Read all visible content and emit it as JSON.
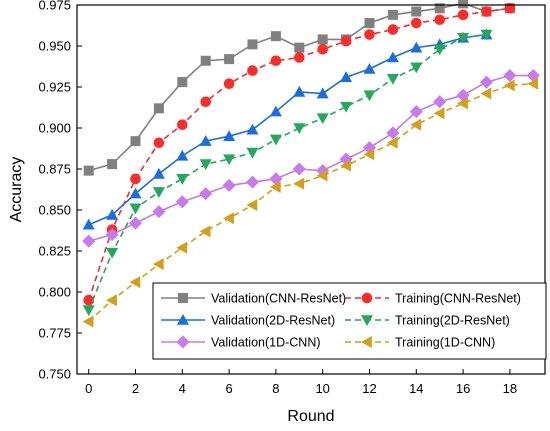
{
  "chart_data": {
    "type": "line",
    "title": "",
    "xlabel": "Round",
    "ylabel": "Accuracy",
    "xlim": [
      -0.5,
      19.5
    ],
    "ylim": [
      0.75,
      0.975
    ],
    "x_ticks": [
      0,
      2,
      4,
      6,
      8,
      10,
      12,
      14,
      16,
      18
    ],
    "y_ticks": [
      0.75,
      0.775,
      0.8,
      0.825,
      0.85,
      0.875,
      0.9,
      0.925,
      0.95,
      0.975
    ],
    "x_tick_labels": [
      "0",
      "2",
      "4",
      "6",
      "8",
      "10",
      "12",
      "14",
      "16",
      "18"
    ],
    "y_tick_labels": [
      "0.750",
      "0.775",
      "0.800",
      "0.825",
      "0.850",
      "0.875",
      "0.900",
      "0.925",
      "0.950",
      "0.975"
    ],
    "grid": false,
    "legend_position": "bottom-right",
    "series": [
      {
        "name": "Validation(CNN-ResNet)",
        "color": "#808080",
        "marker": "square",
        "dash": "solid",
        "x": [
          0,
          1,
          2,
          3,
          4,
          5,
          6,
          7,
          8,
          9,
          10,
          11,
          12,
          13,
          14,
          15,
          16,
          17,
          18
        ],
        "values": [
          0.874,
          0.878,
          0.892,
          0.912,
          0.928,
          0.941,
          0.942,
          0.951,
          0.956,
          0.949,
          0.954,
          0.954,
          0.964,
          0.969,
          0.971,
          0.973,
          0.976,
          0.971,
          0.973
        ]
      },
      {
        "name": "Training(CNN-ResNet)",
        "color": "#ff2a2a",
        "marker": "circle",
        "dash": "dash",
        "x": [
          0,
          1,
          2,
          3,
          4,
          5,
          6,
          7,
          8,
          9,
          10,
          11,
          12,
          13,
          14,
          15,
          16,
          17,
          18
        ],
        "values": [
          0.795,
          0.838,
          0.869,
          0.891,
          0.902,
          0.916,
          0.927,
          0.935,
          0.941,
          0.943,
          0.948,
          0.953,
          0.957,
          0.96,
          0.964,
          0.966,
          0.969,
          0.971,
          0.973
        ]
      },
      {
        "name": "Validation(2D-ResNet)",
        "color": "#1a6fe0",
        "marker": "triangle-up",
        "dash": "solid",
        "x": [
          0,
          1,
          2,
          3,
          4,
          5,
          6,
          7,
          8,
          9,
          10,
          11,
          12,
          13,
          14,
          15,
          16,
          17
        ],
        "values": [
          0.841,
          0.847,
          0.86,
          0.872,
          0.883,
          0.892,
          0.895,
          0.899,
          0.91,
          0.922,
          0.921,
          0.931,
          0.936,
          0.943,
          0.949,
          0.951,
          0.955,
          0.957
        ]
      },
      {
        "name": "Training(2D-ResNet)",
        "color": "#22aa5a",
        "marker": "triangle-down",
        "dash": "dash",
        "x": [
          0,
          1,
          2,
          3,
          4,
          5,
          6,
          7,
          8,
          9,
          10,
          11,
          12,
          13,
          14,
          15,
          16,
          17
        ],
        "values": [
          0.789,
          0.824,
          0.851,
          0.861,
          0.869,
          0.878,
          0.881,
          0.885,
          0.893,
          0.9,
          0.906,
          0.913,
          0.92,
          0.93,
          0.937,
          0.948,
          0.955,
          0.957
        ]
      },
      {
        "name": "Validation(1D-CNN)",
        "color": "#c879f0",
        "marker": "diamond",
        "dash": "solid",
        "x": [
          0,
          1,
          2,
          3,
          4,
          5,
          6,
          7,
          8,
          9,
          10,
          11,
          12,
          13,
          14,
          15,
          16,
          17,
          18,
          19
        ],
        "values": [
          0.831,
          0.835,
          0.842,
          0.849,
          0.855,
          0.86,
          0.865,
          0.867,
          0.869,
          0.875,
          0.874,
          0.881,
          0.888,
          0.897,
          0.91,
          0.916,
          0.92,
          0.928,
          0.932,
          0.932
        ]
      },
      {
        "name": "Training(1D-CNN)",
        "color": "#d4a017",
        "marker": "triangle-left",
        "dash": "dash",
        "x": [
          0,
          1,
          2,
          3,
          4,
          5,
          6,
          7,
          8,
          9,
          10,
          11,
          12,
          13,
          14,
          15,
          16,
          17,
          18,
          19
        ],
        "values": [
          0.782,
          0.795,
          0.806,
          0.817,
          0.827,
          0.837,
          0.845,
          0.853,
          0.864,
          0.866,
          0.871,
          0.877,
          0.884,
          0.891,
          0.902,
          0.909,
          0.915,
          0.921,
          0.926,
          0.927
        ]
      }
    ],
    "legend_layout": [
      [
        "Validation(CNN-ResNet)",
        "Training(CNN-ResNet)"
      ],
      [
        "Validation(2D-ResNet)",
        "Training(2D-ResNet)"
      ],
      [
        "Validation(1D-CNN)",
        "Training(1D-CNN)"
      ]
    ]
  }
}
